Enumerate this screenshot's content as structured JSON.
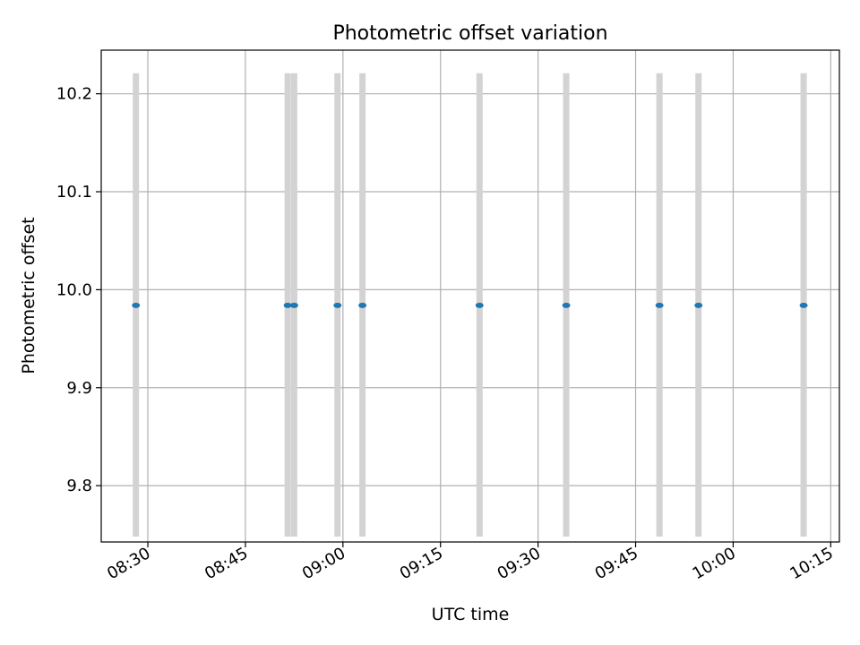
{
  "chart_data": {
    "type": "scatter",
    "title": "Photometric offset variation",
    "xlabel": "UTC time",
    "ylabel": "Photometric offset",
    "x_axis_type": "time",
    "xlim": [
      "08:22:50",
      "10:16:20"
    ],
    "ylim": [
      9.7425,
      10.2445
    ],
    "xticks": [
      "08:30",
      "08:45",
      "09:00",
      "09:15",
      "09:30",
      "09:45",
      "10:00",
      "10:15"
    ],
    "yticks": [
      9.8,
      9.9,
      10.0,
      10.1,
      10.2
    ],
    "grid": true,
    "marker_color": "#1f77b4",
    "errorbar_color": "#d3d3d3",
    "points": [
      {
        "x": "08:28:10",
        "y": 9.984,
        "yerr_low": 9.748,
        "yerr_high": 10.221
      },
      {
        "x": "08:51:30",
        "y": 9.984,
        "yerr_low": 9.748,
        "yerr_high": 10.221
      },
      {
        "x": "08:52:30",
        "y": 9.984,
        "yerr_low": 9.748,
        "yerr_high": 10.221
      },
      {
        "x": "08:59:10",
        "y": 9.984,
        "yerr_low": 9.748,
        "yerr_high": 10.221
      },
      {
        "x": "09:03:00",
        "y": 9.984,
        "yerr_low": 9.748,
        "yerr_high": 10.221
      },
      {
        "x": "09:21:00",
        "y": 9.984,
        "yerr_low": 9.748,
        "yerr_high": 10.221
      },
      {
        "x": "09:34:20",
        "y": 9.984,
        "yerr_low": 9.748,
        "yerr_high": 10.221
      },
      {
        "x": "09:48:40",
        "y": 9.984,
        "yerr_low": 9.748,
        "yerr_high": 10.221
      },
      {
        "x": "09:54:40",
        "y": 9.984,
        "yerr_low": 9.748,
        "yerr_high": 10.221
      },
      {
        "x": "10:10:50",
        "y": 9.984,
        "yerr_low": 9.748,
        "yerr_high": 10.221
      }
    ]
  }
}
